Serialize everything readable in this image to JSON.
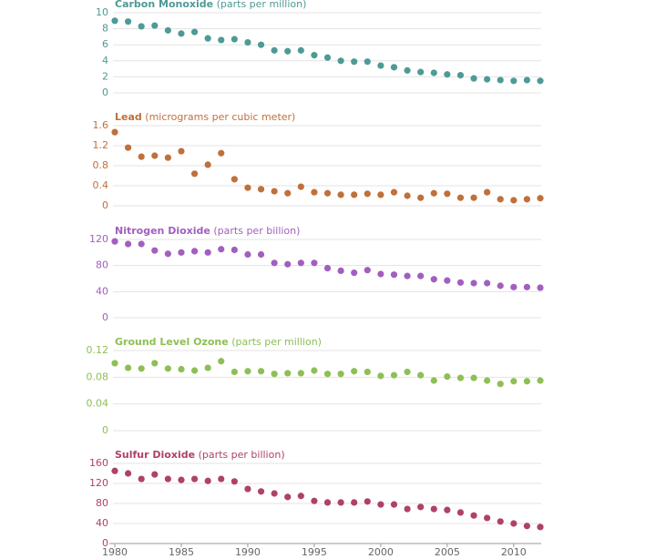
{
  "chart_data": [
    {
      "type": "scatter",
      "title": "Carbon Monoxide",
      "subtitle": "(parts per million)",
      "color": "#4e9a96",
      "x": [
        1980,
        1981,
        1982,
        1983,
        1984,
        1985,
        1986,
        1987,
        1988,
        1989,
        1990,
        1991,
        1992,
        1993,
        1994,
        1995,
        1996,
        1997,
        1998,
        1999,
        2000,
        2001,
        2002,
        2003,
        2004,
        2005,
        2006,
        2007,
        2008,
        2009,
        2010,
        2011,
        2012
      ],
      "values": [
        9.0,
        8.9,
        8.3,
        8.4,
        7.8,
        7.4,
        7.6,
        6.8,
        6.6,
        6.7,
        6.3,
        6.0,
        5.3,
        5.2,
        5.3,
        4.7,
        4.4,
        4.0,
        3.9,
        3.9,
        3.4,
        3.2,
        2.8,
        2.6,
        2.5,
        2.3,
        2.2,
        1.8,
        1.7,
        1.6,
        1.5,
        1.6,
        1.5
      ],
      "xlim": [
        1980,
        2012
      ],
      "ylim": [
        0,
        10
      ],
      "yticks": [
        0,
        2,
        4,
        6,
        8,
        10
      ],
      "grid": true
    },
    {
      "type": "scatter",
      "title": "Lead",
      "subtitle": "(micrograms per cubic meter)",
      "color": "#c0703a",
      "x": [
        1980,
        1981,
        1982,
        1983,
        1984,
        1985,
        1986,
        1987,
        1988,
        1989,
        1990,
        1991,
        1992,
        1993,
        1994,
        1995,
        1996,
        1997,
        1998,
        1999,
        2000,
        2001,
        2002,
        2003,
        2004,
        2005,
        2006,
        2007,
        2008,
        2009,
        2010,
        2011,
        2012
      ],
      "values": [
        1.47,
        1.16,
        0.98,
        1.0,
        0.96,
        1.09,
        0.64,
        0.82,
        1.05,
        0.53,
        0.36,
        0.33,
        0.29,
        0.25,
        0.38,
        0.27,
        0.25,
        0.22,
        0.22,
        0.24,
        0.22,
        0.27,
        0.2,
        0.16,
        0.25,
        0.24,
        0.16,
        0.16,
        0.27,
        0.13,
        0.11,
        0.13,
        0.15
      ],
      "xlim": [
        1980,
        2012
      ],
      "ylim": [
        0,
        1.6
      ],
      "yticks": [
        0,
        0.4,
        0.8,
        1.2,
        1.6
      ],
      "grid": true
    },
    {
      "type": "scatter",
      "title": "Nitrogen Dioxide",
      "subtitle": "(parts per billion)",
      "color": "#a15fbf",
      "x": [
        1980,
        1981,
        1982,
        1983,
        1984,
        1985,
        1986,
        1987,
        1988,
        1989,
        1990,
        1991,
        1992,
        1993,
        1994,
        1995,
        1996,
        1997,
        1998,
        1999,
        2000,
        2001,
        2002,
        2003,
        2004,
        2005,
        2006,
        2007,
        2008,
        2009,
        2010,
        2011,
        2012
      ],
      "values": [
        117,
        113,
        113,
        103,
        98,
        100,
        102,
        100,
        105,
        104,
        97,
        97,
        84,
        82,
        84,
        84,
        76,
        72,
        69,
        73,
        67,
        66,
        64,
        64,
        59,
        57,
        54,
        53,
        53,
        49,
        47,
        47,
        46
      ],
      "xlim": [
        1980,
        2012
      ],
      "ylim": [
        0,
        120
      ],
      "yticks": [
        0,
        40,
        80,
        120
      ],
      "grid": true
    },
    {
      "type": "scatter",
      "title": "Ground Level Ozone",
      "subtitle": "(parts per million)",
      "color": "#8dbf55",
      "x": [
        1980,
        1981,
        1982,
        1983,
        1984,
        1985,
        1986,
        1987,
        1988,
        1989,
        1990,
        1991,
        1992,
        1993,
        1994,
        1995,
        1996,
        1997,
        1998,
        1999,
        2000,
        2001,
        2002,
        2003,
        2004,
        2005,
        2006,
        2007,
        2008,
        2009,
        2010,
        2011,
        2012
      ],
      "values": [
        0.101,
        0.094,
        0.093,
        0.101,
        0.093,
        0.092,
        0.09,
        0.094,
        0.104,
        0.088,
        0.089,
        0.089,
        0.085,
        0.086,
        0.086,
        0.09,
        0.085,
        0.085,
        0.089,
        0.088,
        0.082,
        0.083,
        0.088,
        0.083,
        0.075,
        0.081,
        0.079,
        0.079,
        0.075,
        0.07,
        0.074,
        0.074,
        0.075
      ],
      "xlim": [
        1980,
        2012
      ],
      "ylim": [
        0,
        0.12
      ],
      "yticks": [
        0,
        0.04,
        0.08,
        0.12
      ],
      "grid": true
    },
    {
      "type": "scatter",
      "title": "Sulfur Dioxide",
      "subtitle": "(parts per billion)",
      "color": "#b0406b",
      "x": [
        1980,
        1981,
        1982,
        1983,
        1984,
        1985,
        1986,
        1987,
        1988,
        1989,
        1990,
        1991,
        1992,
        1993,
        1994,
        1995,
        1996,
        1997,
        1998,
        1999,
        2000,
        2001,
        2002,
        2003,
        2004,
        2005,
        2006,
        2007,
        2008,
        2009,
        2010,
        2011,
        2012
      ],
      "values": [
        145,
        140,
        129,
        138,
        129,
        127,
        129,
        125,
        129,
        124,
        109,
        104,
        100,
        93,
        95,
        85,
        82,
        82,
        82,
        84,
        78,
        78,
        69,
        73,
        69,
        67,
        62,
        56,
        51,
        44,
        40,
        35,
        33
      ],
      "xlim": [
        1980,
        2012
      ],
      "ylim": [
        0,
        160
      ],
      "yticks": [
        0,
        40,
        80,
        120,
        160
      ],
      "xticks": [
        1980,
        1985,
        1990,
        1995,
        2000,
        2005,
        2010
      ],
      "grid": true
    }
  ]
}
